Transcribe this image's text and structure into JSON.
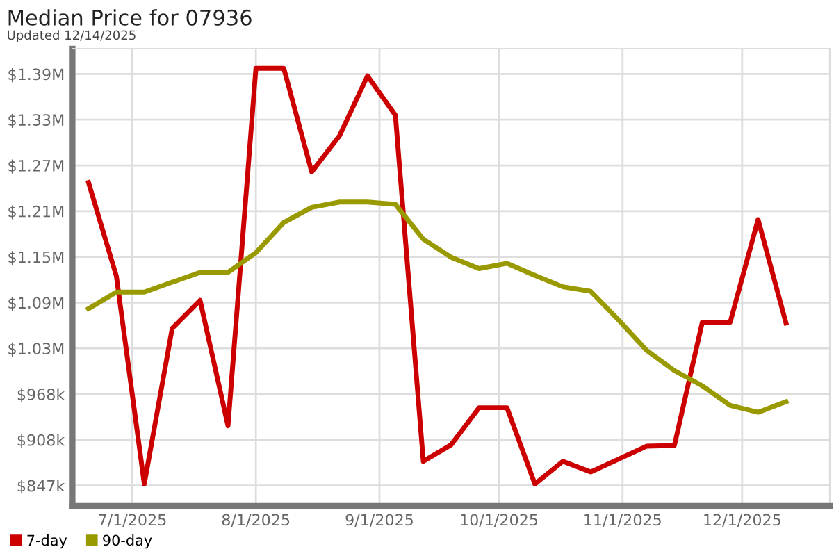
{
  "chart_data": {
    "type": "line",
    "title": "Median Price for 07936",
    "subtitle": "Updated 12/14/2025",
    "x": [
      "2025-06-20",
      "2025-06-27",
      "2025-07-04",
      "2025-07-11",
      "2025-07-18",
      "2025-07-25",
      "2025-08-01",
      "2025-08-08",
      "2025-08-15",
      "2025-08-22",
      "2025-08-29",
      "2025-09-05",
      "2025-09-12",
      "2025-09-19",
      "2025-09-26",
      "2025-10-03",
      "2025-10-10",
      "2025-10-17",
      "2025-10-24",
      "2025-10-31",
      "2025-11-07",
      "2025-11-14",
      "2025-11-21",
      "2025-11-28",
      "2025-12-05",
      "2025-12-12"
    ],
    "series": [
      {
        "name": "7-day",
        "color": "#cc0000",
        "values": [
          1248000,
          1124000,
          849000,
          1055000,
          1092000,
          926000,
          1399000,
          1399000,
          1262000,
          1310000,
          1389000,
          1337000,
          879000,
          901000,
          950000,
          950000,
          849000,
          879000,
          865000,
          882000,
          899000,
          900000,
          1063000,
          1063000,
          1199000,
          1062000
        ]
      },
      {
        "name": "90-day",
        "color": "#999900",
        "values": [
          1081000,
          1103000,
          1103000,
          1116000,
          1129000,
          1129000,
          1155000,
          1195000,
          1215000,
          1222000,
          1222000,
          1219000,
          1173000,
          1149000,
          1134000,
          1141000,
          1125000,
          1110000,
          1104000,
          1066000,
          1026000,
          999000,
          979000,
          953000,
          944000,
          958000
        ]
      }
    ],
    "xlim": [
      "2025-06-16",
      "2025-12-23"
    ],
    "xticks": [
      {
        "value": "2025-07-01",
        "label": "7/1/2025"
      },
      {
        "value": "2025-08-01",
        "label": "8/1/2025"
      },
      {
        "value": "2025-09-01",
        "label": "9/1/2025"
      },
      {
        "value": "2025-10-01",
        "label": "10/1/2025"
      },
      {
        "value": "2025-11-01",
        "label": "11/1/2025"
      },
      {
        "value": "2025-12-01",
        "label": "12/1/2025"
      }
    ],
    "ylim": [
      820000,
      1425000
    ],
    "yticks": [
      {
        "value": 847000,
        "label": "$847k"
      },
      {
        "value": 907500,
        "label": "$908k"
      },
      {
        "value": 968000,
        "label": "$968k"
      },
      {
        "value": 1028500,
        "label": "$1.03M"
      },
      {
        "value": 1089000,
        "label": "$1.09M"
      },
      {
        "value": 1149500,
        "label": "$1.15M"
      },
      {
        "value": 1210000,
        "label": "$1.21M"
      },
      {
        "value": 1270500,
        "label": "$1.27M"
      },
      {
        "value": 1331000,
        "label": "$1.33M"
      },
      {
        "value": 1391500,
        "label": "$1.39M"
      }
    ],
    "grid": true,
    "legend": "bottom left",
    "marker": "none",
    "line_style": "solid"
  }
}
